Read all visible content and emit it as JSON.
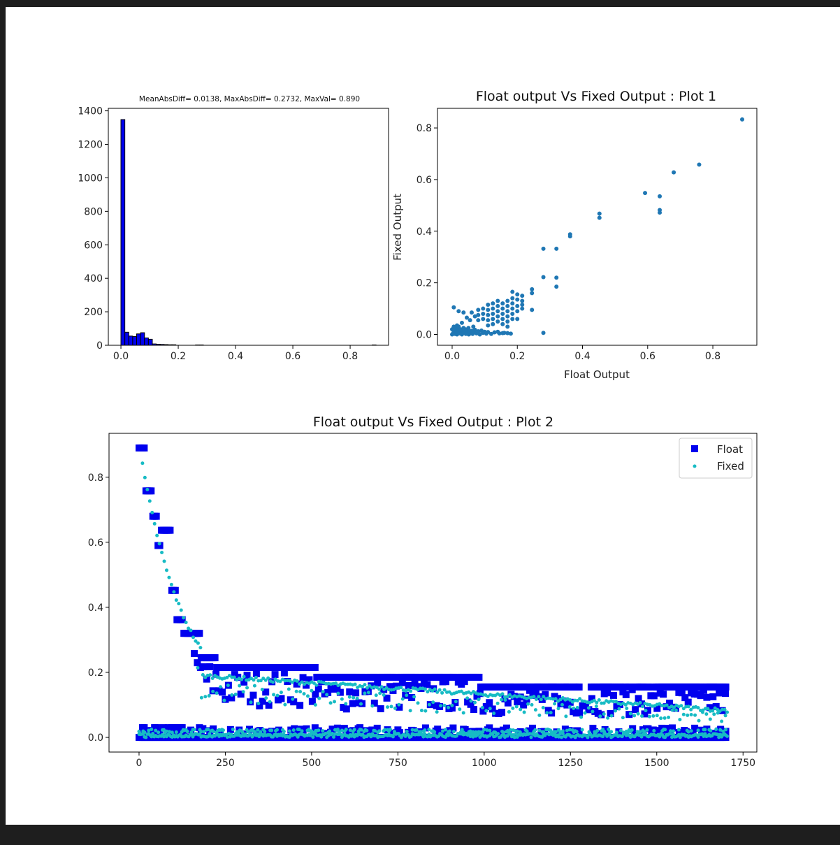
{
  "chart_data": [
    {
      "type": "bar",
      "title": "MeanAbsDiff= 0.0138, MaxAbsDiff= 0.2732, MaxVal=  0.890",
      "xlabel": "",
      "ylabel": "",
      "xlim": [
        -0.044,
        0.934
      ],
      "ylim": [
        0,
        1415
      ],
      "xticks": [
        0.0,
        0.2,
        0.4,
        0.6,
        0.8
      ],
      "xtick_labels": [
        "0.0",
        "0.2",
        "0.4",
        "0.6",
        "0.8"
      ],
      "yticks": [
        0,
        200,
        400,
        600,
        800,
        1000,
        1200,
        1400
      ],
      "ytick_labels": [
        "0",
        "200",
        "400",
        "600",
        "800",
        "1000",
        "1200",
        "1400"
      ],
      "bin_width": 0.0137,
      "bins": [
        {
          "x": 0.0,
          "count": 1348
        },
        {
          "x": 0.0137,
          "count": 78
        },
        {
          "x": 0.0274,
          "count": 55
        },
        {
          "x": 0.0411,
          "count": 52
        },
        {
          "x": 0.0548,
          "count": 68
        },
        {
          "x": 0.0685,
          "count": 75
        },
        {
          "x": 0.0822,
          "count": 44
        },
        {
          "x": 0.0959,
          "count": 36
        },
        {
          "x": 0.1096,
          "count": 8
        },
        {
          "x": 0.1233,
          "count": 6
        },
        {
          "x": 0.137,
          "count": 5
        },
        {
          "x": 0.1507,
          "count": 4
        },
        {
          "x": 0.1644,
          "count": 3
        },
        {
          "x": 0.1781,
          "count": 3
        },
        {
          "x": 0.2603,
          "count": 2
        },
        {
          "x": 0.274,
          "count": 2
        },
        {
          "x": 0.8767,
          "count": 2
        }
      ],
      "colors": {
        "fill": "#0000ee",
        "edge": "#000000"
      },
      "grid": false
    },
    {
      "type": "scatter",
      "title": "Float output Vs Fixed Output : Plot 1",
      "xlabel": "Float Output",
      "ylabel": "Fixed Output",
      "xlim": [
        -0.045,
        0.935
      ],
      "ylim": [
        -0.042,
        0.876
      ],
      "xticks": [
        0.0,
        0.2,
        0.4,
        0.6,
        0.8
      ],
      "xtick_labels": [
        "0.0",
        "0.2",
        "0.4",
        "0.6",
        "0.8"
      ],
      "yticks": [
        0.0,
        0.2,
        0.4,
        0.6,
        0.8
      ],
      "ytick_labels": [
        "0.0",
        "0.2",
        "0.4",
        "0.6",
        "0.8"
      ],
      "colors": {
        "point": "#1f77b4"
      },
      "grid": false,
      "points": [
        [
          0.89,
          0.833
        ],
        [
          0.758,
          0.658
        ],
        [
          0.68,
          0.628
        ],
        [
          0.637,
          0.535
        ],
        [
          0.637,
          0.482
        ],
        [
          0.637,
          0.472
        ],
        [
          0.592,
          0.548
        ],
        [
          0.452,
          0.468
        ],
        [
          0.452,
          0.452
        ],
        [
          0.362,
          0.388
        ],
        [
          0.362,
          0.38
        ],
        [
          0.32,
          0.332
        ],
        [
          0.32,
          0.22
        ],
        [
          0.32,
          0.185
        ],
        [
          0.28,
          0.332
        ],
        [
          0.28,
          0.222
        ],
        [
          0.28,
          0.006
        ],
        [
          0.245,
          0.175
        ],
        [
          0.245,
          0.16
        ],
        [
          0.245,
          0.095
        ],
        [
          0.215,
          0.15
        ],
        [
          0.215,
          0.13
        ],
        [
          0.215,
          0.115
        ],
        [
          0.215,
          0.1
        ],
        [
          0.2,
          0.155
        ],
        [
          0.2,
          0.135
        ],
        [
          0.2,
          0.11
        ],
        [
          0.2,
          0.09
        ],
        [
          0.2,
          0.06
        ],
        [
          0.185,
          0.165
        ],
        [
          0.185,
          0.14
        ],
        [
          0.185,
          0.12
        ],
        [
          0.185,
          0.1
        ],
        [
          0.185,
          0.08
        ],
        [
          0.185,
          0.06
        ],
        [
          0.17,
          0.13
        ],
        [
          0.17,
          0.11
        ],
        [
          0.17,
          0.09
        ],
        [
          0.17,
          0.07
        ],
        [
          0.17,
          0.05
        ],
        [
          0.17,
          0.03
        ],
        [
          0.17,
          0.005
        ],
        [
          0.155,
          0.12
        ],
        [
          0.155,
          0.1
        ],
        [
          0.155,
          0.08
        ],
        [
          0.155,
          0.06
        ],
        [
          0.155,
          0.04
        ],
        [
          0.155,
          0.005
        ],
        [
          0.14,
          0.13
        ],
        [
          0.14,
          0.11
        ],
        [
          0.14,
          0.09
        ],
        [
          0.14,
          0.07
        ],
        [
          0.14,
          0.05
        ],
        [
          0.14,
          0.01
        ],
        [
          0.125,
          0.12
        ],
        [
          0.125,
          0.1
        ],
        [
          0.125,
          0.08
        ],
        [
          0.125,
          0.06
        ],
        [
          0.125,
          0.04
        ],
        [
          0.11,
          0.115
        ],
        [
          0.11,
          0.095
        ],
        [
          0.11,
          0.075
        ],
        [
          0.11,
          0.055
        ],
        [
          0.11,
          0.035
        ],
        [
          0.095,
          0.1
        ],
        [
          0.095,
          0.08
        ],
        [
          0.095,
          0.06
        ],
        [
          0.08,
          0.095
        ],
        [
          0.08,
          0.075
        ],
        [
          0.08,
          0.055
        ],
        [
          0.07,
          0.07
        ],
        [
          0.06,
          0.085
        ],
        [
          0.055,
          0.055
        ],
        [
          0.045,
          0.065
        ],
        [
          0.035,
          0.085
        ],
        [
          0.03,
          0.045
        ],
        [
          0.02,
          0.09
        ],
        [
          0.005,
          0.105
        ],
        [
          0.0,
          0.0
        ],
        [
          0.003,
          0.005
        ],
        [
          0.006,
          0.01
        ],
        [
          0.009,
          0.002
        ],
        [
          0.012,
          0.015
        ],
        [
          0.015,
          0.0
        ],
        [
          0.018,
          0.008
        ],
        [
          0.021,
          0.02
        ],
        [
          0.024,
          0.004
        ],
        [
          0.027,
          0.012
        ],
        [
          0.03,
          0.0
        ],
        [
          0.033,
          0.018
        ],
        [
          0.036,
          0.006
        ],
        [
          0.039,
          0.01
        ],
        [
          0.042,
          0.002
        ],
        [
          0.045,
          0.016
        ],
        [
          0.048,
          0.008
        ],
        [
          0.051,
          0.0
        ],
        [
          0.054,
          0.012
        ],
        [
          0.057,
          0.004
        ],
        [
          0.06,
          0.014
        ],
        [
          0.063,
          0.002
        ],
        [
          0.066,
          0.008
        ],
        [
          0.07,
          0.018
        ],
        [
          0.075,
          0.004
        ],
        [
          0.08,
          0.012
        ],
        [
          0.085,
          0.0
        ],
        [
          0.09,
          0.015
        ],
        [
          0.095,
          0.006
        ],
        [
          0.1,
          0.01
        ],
        [
          0.105,
          0.003
        ],
        [
          0.11,
          0.009
        ],
        [
          0.12,
          0.002
        ],
        [
          0.13,
          0.008
        ],
        [
          0.145,
          0.004
        ],
        [
          0.16,
          0.006
        ],
        [
          0.18,
          0.003
        ],
        [
          0.0,
          0.02
        ],
        [
          0.005,
          0.03
        ],
        [
          0.01,
          0.025
        ],
        [
          0.015,
          0.035
        ],
        [
          0.02,
          0.03
        ],
        [
          0.025,
          0.02
        ],
        [
          0.035,
          0.025
        ],
        [
          0.04,
          0.02
        ],
        [
          0.05,
          0.025
        ],
        [
          0.065,
          0.03
        ]
      ]
    },
    {
      "type": "scatter",
      "title": "Float output Vs Fixed Output : Plot 2",
      "xlabel": "",
      "ylabel": "",
      "xlim": [
        -87,
        1790
      ],
      "ylim": [
        -0.045,
        0.935
      ],
      "xticks": [
        0,
        250,
        500,
        750,
        1000,
        1250,
        1500,
        1750
      ],
      "xtick_labels": [
        "0",
        "250",
        "500",
        "750",
        "1000",
        "1250",
        "1500",
        "1750"
      ],
      "yticks": [
        0.0,
        0.2,
        0.4,
        0.6,
        0.8
      ],
      "ytick_labels": [
        "0.0",
        "0.2",
        "0.4",
        "0.6",
        "0.8"
      ],
      "legend": {
        "position": "upper-right"
      },
      "grid": false,
      "series": [
        {
          "name": "Float",
          "marker": "square",
          "color": "#0000ee"
        },
        {
          "name": "Fixed",
          "marker": "circle",
          "color": "#17bbc4"
        }
      ]
    }
  ]
}
